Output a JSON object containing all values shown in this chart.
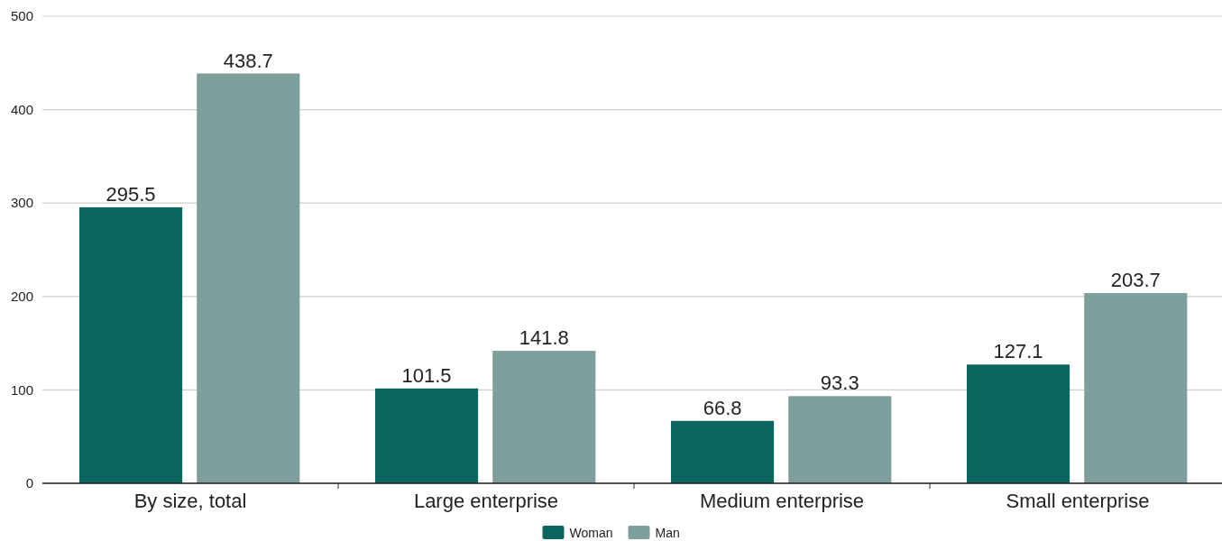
{
  "chart_data": {
    "type": "bar",
    "categories": [
      "By size, total",
      "Large enterprise",
      "Medium enterprise",
      "Small enterprise"
    ],
    "series": [
      {
        "name": "Woman",
        "color": "#0d6560",
        "values": [
          295.5,
          101.5,
          66.8,
          127.1
        ]
      },
      {
        "name": "Man",
        "color": "#7f9f9c",
        "values": [
          438.7,
          141.8,
          93.3,
          203.7
        ]
      }
    ],
    "ylim": [
      0,
      500
    ],
    "yticks": [
      0,
      100,
      200,
      300,
      400,
      500
    ],
    "grid": "y",
    "legend": "bottom",
    "data_labels": true
  }
}
